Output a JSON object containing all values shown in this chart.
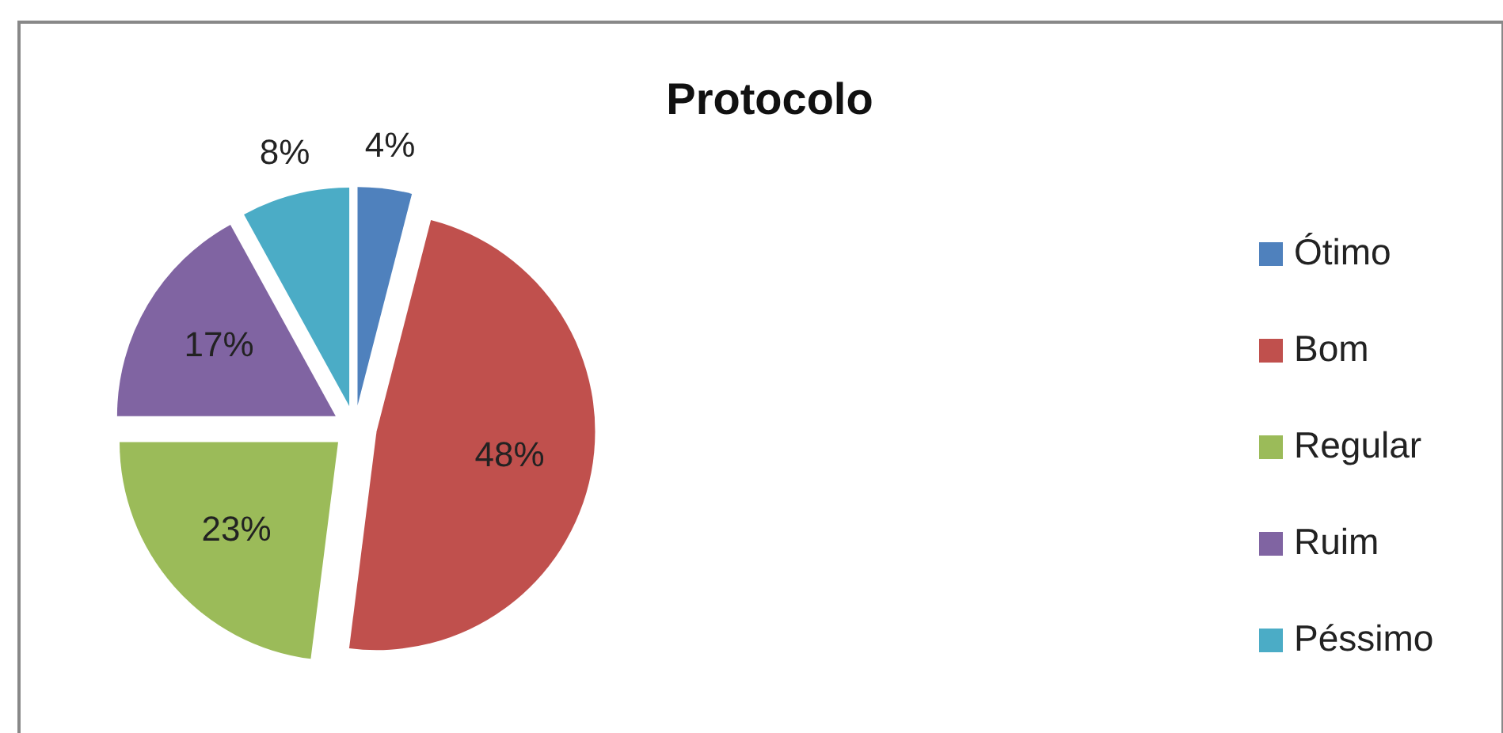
{
  "chart_data": {
    "type": "pie",
    "title": "Protocolo",
    "categories": [
      "Ótimo",
      "Bom",
      "Regular",
      "Ruim",
      "Péssimo"
    ],
    "values": [
      4,
      48,
      23,
      17,
      8
    ],
    "colors": [
      "#4f81bd",
      "#c0504d",
      "#9bbb59",
      "#8064a2",
      "#4bacc6"
    ],
    "value_labels": [
      "4%",
      "48%",
      "23%",
      "17%",
      "8%"
    ],
    "legend": "right"
  }
}
